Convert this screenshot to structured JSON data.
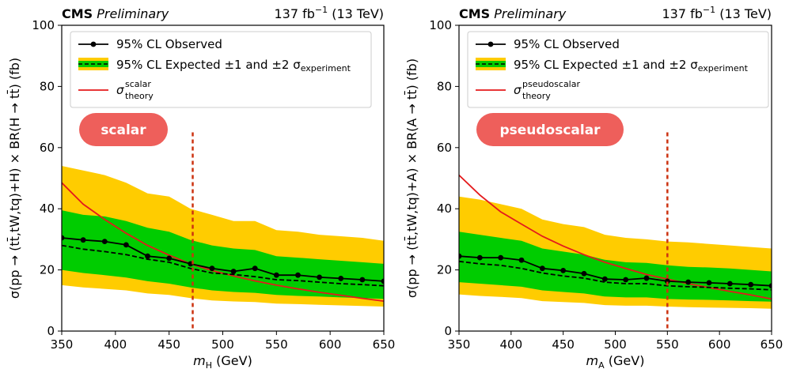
{
  "chart_data": [
    {
      "type": "line",
      "header_left_bold": "CMS",
      "header_left_italic": "Preliminary",
      "header_right": "137 fb",
      "header_right_sup": "−1",
      "header_right_tail": " (13 TeV)",
      "box_label": "scalar",
      "colors": {
        "band2": "#ffcc00",
        "band1": "#00cc00",
        "observed": "#000000",
        "expected": "#000000",
        "theory": "#e41a1c",
        "label_box": "#ee5f5b",
        "vline": "#cc3311"
      },
      "legend": {
        "placement": "top-left",
        "observed": "95% CL Observed",
        "expected": "95% CL Expected ±1 and ±2 σ",
        "expected_sub": "experiment",
        "theory_symbol": "σ",
        "theory_sub": "theory",
        "theory_sup": "scalar"
      },
      "ylabel": "σ(pp → (tt̄,tW,tq)+H) × BR(H → tt̄) (fb)",
      "xlabel_var": "m",
      "xlabel_sub": "H",
      "xlabel_unit": " (GeV)",
      "xlim": [
        350,
        650
      ],
      "ylim": [
        0,
        100
      ],
      "xticks": [
        "350",
        "400",
        "450",
        "500",
        "550",
        "600",
        "650"
      ],
      "yticks": [
        "0",
        "20",
        "40",
        "60",
        "80",
        "100"
      ],
      "vline_x": 472,
      "x": [
        350,
        370,
        390,
        410,
        430,
        450,
        470,
        490,
        510,
        530,
        550,
        570,
        590,
        610,
        630,
        650
      ],
      "observed": [
        30.5,
        29.8,
        29.3,
        28.2,
        24.5,
        23.8,
        22.0,
        20.5,
        19.5,
        20.5,
        18.3,
        18.3,
        17.6,
        17.2,
        16.8,
        16.3
      ],
      "expected": [
        28.0,
        26.8,
        26.0,
        25.0,
        23.5,
        22.5,
        20.5,
        19.0,
        18.5,
        17.8,
        16.8,
        16.5,
        16.0,
        15.5,
        15.2,
        14.8
      ],
      "band1_low": [
        20.0,
        19.0,
        18.3,
        17.5,
        16.3,
        15.5,
        14.3,
        13.3,
        12.8,
        12.5,
        11.8,
        11.5,
        11.3,
        11.0,
        10.8,
        10.5
      ],
      "band1_high": [
        39.5,
        38.0,
        37.5,
        36.0,
        33.8,
        32.5,
        29.8,
        28.0,
        27.0,
        26.5,
        24.5,
        24.0,
        23.5,
        23.0,
        22.5,
        22.0
      ],
      "band2_low": [
        15.0,
        14.3,
        13.8,
        13.3,
        12.3,
        11.8,
        10.8,
        10.0,
        9.7,
        9.5,
        9.0,
        8.8,
        8.6,
        8.4,
        8.2,
        8.0
      ],
      "band2_high": [
        54.0,
        52.5,
        51.0,
        48.5,
        45.0,
        44.0,
        40.0,
        38.0,
        36.0,
        36.0,
        33.0,
        32.5,
        31.5,
        31.0,
        30.5,
        29.5
      ],
      "theory": [
        48.5,
        41.5,
        36.5,
        32.0,
        28.0,
        24.8,
        22.0,
        19.8,
        18.0,
        16.4,
        15.0,
        13.8,
        12.7,
        11.7,
        10.7,
        9.8
      ]
    },
    {
      "type": "line",
      "header_left_bold": "CMS",
      "header_left_italic": "Preliminary",
      "header_right": "137 fb",
      "header_right_sup": "−1",
      "header_right_tail": " (13 TeV)",
      "box_label": "pseudoscalar",
      "colors": {
        "band2": "#ffcc00",
        "band1": "#00cc00",
        "observed": "#000000",
        "expected": "#000000",
        "theory": "#e41a1c",
        "label_box": "#ee5f5b",
        "vline": "#cc3311"
      },
      "legend": {
        "placement": "top-left",
        "observed": "95% CL Observed",
        "expected": "95% CL Expected ±1 and ±2 σ",
        "expected_sub": "experiment",
        "theory_symbol": "σ",
        "theory_sub": "theory",
        "theory_sup": "pseudoscalar"
      },
      "ylabel": "σ(pp → (tt̄,tW,tq)+A) × BR(A → tt̄) (fb)",
      "xlabel_var": "m",
      "xlabel_sub": "A",
      "xlabel_unit": " (GeV)",
      "xlim": [
        350,
        650
      ],
      "ylim": [
        0,
        100
      ],
      "xticks": [
        "350",
        "400",
        "450",
        "500",
        "550",
        "600",
        "650"
      ],
      "yticks": [
        "0",
        "20",
        "40",
        "60",
        "80",
        "100"
      ],
      "vline_x": 550,
      "x": [
        350,
        370,
        390,
        410,
        430,
        450,
        470,
        490,
        510,
        530,
        550,
        570,
        590,
        610,
        630,
        650
      ],
      "observed": [
        24.5,
        24.0,
        24.0,
        23.2,
        20.5,
        19.8,
        18.8,
        17.0,
        16.8,
        17.3,
        16.3,
        16.0,
        15.8,
        15.5,
        15.2,
        14.8
      ],
      "expected": [
        22.8,
        22.0,
        21.5,
        20.5,
        19.0,
        18.0,
        17.3,
        16.0,
        15.5,
        15.5,
        14.8,
        14.5,
        14.3,
        14.0,
        13.8,
        13.5
      ],
      "band1_low": [
        16.0,
        15.5,
        15.0,
        14.5,
        13.3,
        12.8,
        12.3,
        11.3,
        11.0,
        11.0,
        10.5,
        10.3,
        10.2,
        10.0,
        9.8,
        9.6
      ],
      "band1_high": [
        32.5,
        31.5,
        30.5,
        29.5,
        27.0,
        26.0,
        25.0,
        23.3,
        22.5,
        22.3,
        21.5,
        21.0,
        20.8,
        20.5,
        20.0,
        19.5
      ],
      "band2_low": [
        12.0,
        11.5,
        11.2,
        10.8,
        9.8,
        9.5,
        9.2,
        8.5,
        8.3,
        8.3,
        8.0,
        7.8,
        7.7,
        7.6,
        7.5,
        7.3
      ],
      "band2_high": [
        44.0,
        43.0,
        41.5,
        40.0,
        36.5,
        35.0,
        34.0,
        31.5,
        30.5,
        30.0,
        29.3,
        29.0,
        28.5,
        28.0,
        27.5,
        27.0
      ],
      "theory": [
        51.0,
        44.5,
        39.0,
        35.0,
        31.0,
        27.8,
        25.0,
        22.5,
        20.5,
        18.5,
        17.0,
        15.5,
        14.2,
        13.0,
        11.8,
        10.5
      ]
    }
  ]
}
